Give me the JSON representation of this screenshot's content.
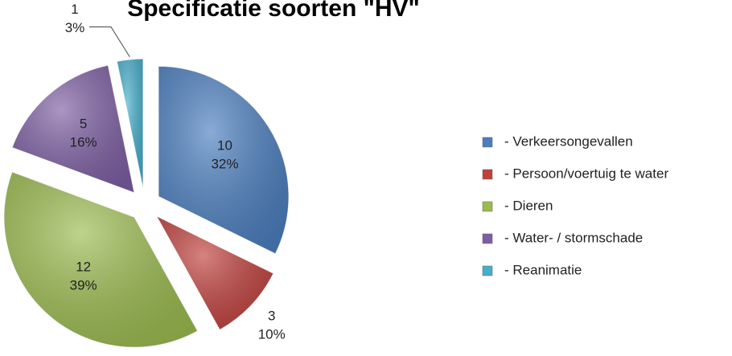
{
  "chart_data": {
    "type": "pie",
    "title": "Specificatie soorten \"HV\"",
    "categories": [
      "- Verkeersongevallen",
      "- Persoon/voertuig te water",
      "- Dieren",
      "- Water- / stormschade",
      "- Reanimatie"
    ],
    "values": [
      10,
      3,
      12,
      5,
      1
    ],
    "percent_labels": [
      "32%",
      "10%",
      "39%",
      "16%",
      "3%"
    ],
    "colors": [
      "#4a7ebf",
      "#c0403c",
      "#9bbb4e",
      "#7d5ea3",
      "#45aecb"
    ],
    "legend": "right"
  }
}
